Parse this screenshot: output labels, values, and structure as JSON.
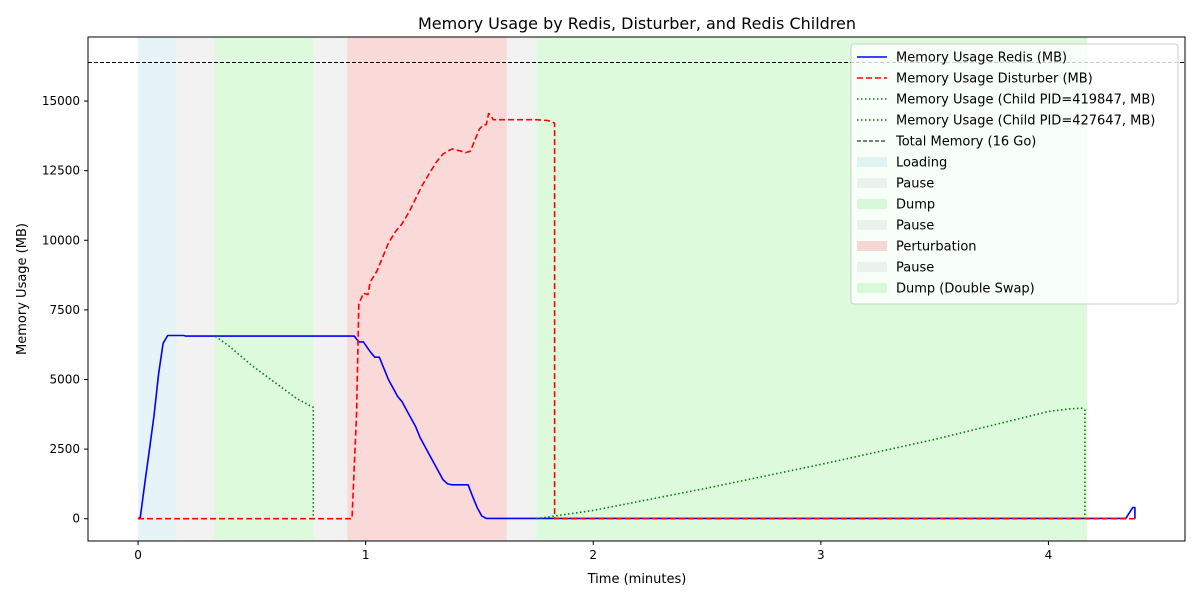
{
  "chart_data": {
    "type": "line",
    "title": "Memory Usage by Redis, Disturber, and Redis Children",
    "xlabel": "Time (minutes)",
    "ylabel": "Memory Usage (MB)",
    "xlim": [
      -0.22,
      4.6
    ],
    "ylim": [
      -800,
      17300
    ],
    "xticks": [
      0,
      1,
      2,
      3,
      4
    ],
    "yticks": [
      0,
      2500,
      5000,
      7500,
      10000,
      12500,
      15000
    ],
    "grid": false,
    "legend_position": "top-right",
    "hlines": [
      {
        "name": "Total Memory (16 Go)",
        "y": 16384,
        "color": "#000000",
        "style": "dashed"
      }
    ],
    "spans": [
      {
        "name": "Loading",
        "x0": 0.0,
        "x1": 0.17,
        "color": "#add8e6"
      },
      {
        "name": "Pause",
        "x0": 0.17,
        "x1": 0.335,
        "color": "#d3d3d3"
      },
      {
        "name": "Dump",
        "x0": 0.335,
        "x1": 0.77,
        "color": "#90ee90"
      },
      {
        "name": "Pause",
        "x0": 0.77,
        "x1": 0.92,
        "color": "#d3d3d3"
      },
      {
        "name": "Perturbation",
        "x0": 0.92,
        "x1": 1.62,
        "color": "#f08080"
      },
      {
        "name": "Pause",
        "x0": 1.62,
        "x1": 1.75,
        "color": "#d3d3d3"
      },
      {
        "name": "Dump (Double Swap)",
        "x0": 1.75,
        "x1": 4.17,
        "color": "#90ee90"
      }
    ],
    "series": [
      {
        "name": "Memory Usage Redis (MB)",
        "color": "#0000ff",
        "style": "solid",
        "x": [
          0,
          0.01,
          0.03,
          0.05,
          0.07,
          0.09,
          0.11,
          0.13,
          0.2,
          0.21,
          0.95,
          0.97,
          0.99,
          1.02,
          1.04,
          1.06,
          1.08,
          1.1,
          1.12,
          1.14,
          1.16,
          1.18,
          1.2,
          1.22,
          1.24,
          1.26,
          1.28,
          1.3,
          1.32,
          1.34,
          1.36,
          1.38,
          1.45,
          1.47,
          1.49,
          1.51,
          1.53,
          1.62,
          4.34,
          4.37,
          4.38,
          4.38
        ],
        "y": [
          0,
          50,
          1300,
          2500,
          3700,
          5200,
          6300,
          6580,
          6580,
          6560,
          6560,
          6350,
          6350,
          6000,
          5800,
          5800,
          5400,
          5000,
          4700,
          4400,
          4200,
          3900,
          3600,
          3300,
          2900,
          2600,
          2300,
          2000,
          1700,
          1400,
          1250,
          1220,
          1220,
          800,
          400,
          100,
          10,
          10,
          10,
          400,
          400,
          0
        ]
      },
      {
        "name": "Memory Usage Disturber (MB)",
        "color": "#ff0000",
        "style": "dashed",
        "x": [
          0,
          0.94,
          0.96,
          0.97,
          0.99,
          1.01,
          1.02,
          1.05,
          1.07,
          1.1,
          1.13,
          1.16,
          1.19,
          1.22,
          1.25,
          1.28,
          1.31,
          1.34,
          1.36,
          1.38,
          1.4,
          1.42,
          1.44,
          1.46,
          1.48,
          1.5,
          1.52,
          1.53,
          1.54,
          1.55,
          1.56,
          1.75,
          1.8,
          1.82,
          1.83,
          1.83,
          4.38
        ],
        "y": [
          0,
          0,
          3800,
          7700,
          8100,
          8050,
          8500,
          8900,
          9300,
          9900,
          10300,
          10600,
          11000,
          11500,
          12000,
          12400,
          12800,
          13100,
          13200,
          13280,
          13240,
          13200,
          13150,
          13200,
          13600,
          14000,
          14150,
          14150,
          14550,
          14500,
          14330,
          14330,
          14300,
          14250,
          14200,
          0,
          0
        ]
      },
      {
        "name": "Memory Usage (Child PID=419847, MB)",
        "color": "#008000",
        "style": "dotted",
        "x": [
          0.34,
          0.4,
          0.5,
          0.6,
          0.7,
          0.77,
          0.77
        ],
        "y": [
          6550,
          6200,
          5500,
          4900,
          4300,
          4000,
          0
        ]
      },
      {
        "name": "Memory Usage (Child PID=427647, MB)",
        "color": "#008000",
        "style": "dotted",
        "x": [
          1.75,
          2.0,
          2.5,
          3.0,
          3.5,
          3.8,
          4.0,
          4.1,
          4.15,
          4.16,
          4.16
        ],
        "y": [
          0,
          300,
          1100,
          1950,
          2850,
          3450,
          3850,
          3950,
          3970,
          3900,
          0
        ]
      }
    ],
    "legend": [
      {
        "kind": "line",
        "label": "Memory Usage Redis (MB)",
        "color": "#0000ff",
        "style": "solid"
      },
      {
        "kind": "line",
        "label": "Memory Usage Disturber (MB)",
        "color": "#ff0000",
        "style": "dashed"
      },
      {
        "kind": "line",
        "label": "Memory Usage (Child PID=419847, MB)",
        "color": "#008000",
        "style": "dotted"
      },
      {
        "kind": "line",
        "label": "Memory Usage (Child PID=427647, MB)",
        "color": "#008000",
        "style": "dotted"
      },
      {
        "kind": "line",
        "label": "Total Memory (16 Go)",
        "color": "#000000",
        "style": "dashed-thin"
      },
      {
        "kind": "patch",
        "label": "Loading",
        "color": "#add8e6"
      },
      {
        "kind": "patch",
        "label": "Pause",
        "color": "#d3d3d3"
      },
      {
        "kind": "patch",
        "label": "Dump",
        "color": "#90ee90"
      },
      {
        "kind": "patch",
        "label": "Pause",
        "color": "#d3d3d3"
      },
      {
        "kind": "patch",
        "label": "Perturbation",
        "color": "#f08080"
      },
      {
        "kind": "patch",
        "label": "Pause",
        "color": "#d3d3d3"
      },
      {
        "kind": "patch",
        "label": "Dump (Double Swap)",
        "color": "#90ee90"
      }
    ]
  }
}
